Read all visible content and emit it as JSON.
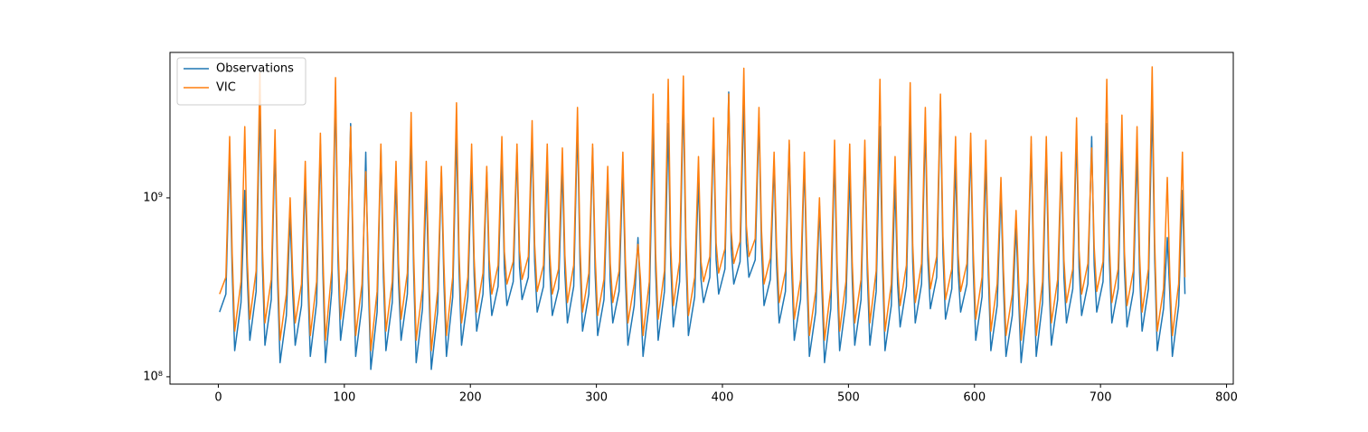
{
  "chart_data": {
    "type": "line",
    "yscale": "log",
    "grid": false,
    "legend": "upper left",
    "xlim": [
      -38.35,
      805.35
    ],
    "ylim": [
      91000000.0,
      6500000000.0
    ],
    "xticks": [
      0,
      100,
      200,
      300,
      400,
      500,
      600,
      700,
      800
    ],
    "yticks": [
      {
        "value": 100000000.0,
        "label": "10⁸"
      },
      {
        "value": 1000000000.0,
        "label": "10⁹"
      }
    ],
    "x": [
      1,
      6,
      9,
      11,
      13,
      18,
      21,
      23,
      25,
      30,
      33,
      35,
      37,
      42,
      45,
      47,
      49,
      54,
      57,
      59,
      61,
      66,
      69,
      71,
      73,
      78,
      81,
      83,
      85,
      90,
      93,
      95,
      97,
      102,
      105,
      107,
      109,
      114,
      117,
      119,
      121,
      126,
      129,
      131,
      133,
      138,
      141,
      143,
      145,
      150,
      153,
      155,
      157,
      162,
      165,
      167,
      169,
      174,
      177,
      179,
      181,
      186,
      189,
      191,
      193,
      198,
      201,
      203,
      205,
      210,
      213,
      215,
      217,
      222,
      225,
      227,
      229,
      234,
      237,
      239,
      241,
      246,
      249,
      251,
      253,
      258,
      261,
      263,
      265,
      270,
      273,
      275,
      277,
      282,
      285,
      287,
      289,
      294,
      297,
      299,
      301,
      306,
      309,
      311,
      313,
      318,
      321,
      323,
      325,
      330,
      333,
      335,
      337,
      342,
      345,
      347,
      349,
      354,
      357,
      359,
      361,
      366,
      369,
      371,
      373,
      378,
      381,
      383,
      385,
      390,
      393,
      395,
      397,
      402,
      405,
      407,
      409,
      414,
      417,
      419,
      421,
      426,
      429,
      431,
      433,
      438,
      441,
      443,
      445,
      450,
      453,
      455,
      457,
      462,
      465,
      467,
      469,
      474,
      477,
      479,
      481,
      486,
      489,
      491,
      493,
      498,
      501,
      503,
      505,
      510,
      513,
      515,
      517,
      522,
      525,
      527,
      529,
      534,
      537,
      539,
      541,
      546,
      549,
      551,
      553,
      558,
      561,
      563,
      565,
      570,
      573,
      575,
      577,
      582,
      585,
      587,
      589,
      594,
      597,
      599,
      601,
      606,
      609,
      611,
      613,
      618,
      621,
      623,
      625,
      630,
      633,
      635,
      637,
      642,
      645,
      647,
      649,
      654,
      657,
      659,
      661,
      666,
      669,
      671,
      673,
      678,
      681,
      683,
      685,
      690,
      693,
      695,
      697,
      702,
      705,
      707,
      709,
      714,
      717,
      719,
      721,
      726,
      729,
      731,
      733,
      738,
      741,
      743,
      745,
      750,
      753,
      755,
      757,
      762,
      765,
      767
    ],
    "series": [
      {
        "name": "Observations",
        "color": "#1f77b4",
        "values": [
          230000000.0,
          290000000.0,
          1800000000.0,
          390000000.0,
          140000000.0,
          260000000.0,
          1100000000.0,
          360000000.0,
          160000000.0,
          300000000.0,
          3500000000.0,
          420000000.0,
          150000000.0,
          270000000.0,
          2000000000.0,
          350000000.0,
          120000000.0,
          220000000.0,
          800000000.0,
          300000000.0,
          150000000.0,
          250000000.0,
          1300000000.0,
          340000000.0,
          130000000.0,
          260000000.0,
          2000000000.0,
          380000000.0,
          120000000.0,
          300000000.0,
          3900000000.0,
          440000000.0,
          160000000.0,
          310000000.0,
          2600000000.0,
          410000000.0,
          130000000.0,
          250000000.0,
          1800000000.0,
          350000000.0,
          110000000.0,
          230000000.0,
          1900000000.0,
          360000000.0,
          140000000.0,
          260000000.0,
          1300000000.0,
          340000000.0,
          160000000.0,
          290000000.0,
          2200000000.0,
          390000000.0,
          120000000.0,
          240000000.0,
          1200000000.0,
          330000000.0,
          110000000.0,
          230000000.0,
          1400000000.0,
          340000000.0,
          130000000.0,
          280000000.0,
          2400000000.0,
          400000000.0,
          150000000.0,
          280000000.0,
          1600000000.0,
          370000000.0,
          180000000.0,
          290000000.0,
          1400000000.0,
          360000000.0,
          220000000.0,
          320000000.0,
          1800000000.0,
          400000000.0,
          250000000.0,
          340000000.0,
          1800000000.0,
          410000000.0,
          270000000.0,
          360000000.0,
          2200000000.0,
          440000000.0,
          230000000.0,
          320000000.0,
          1500000000.0,
          390000000.0,
          220000000.0,
          310000000.0,
          1500000000.0,
          380000000.0,
          200000000.0,
          320000000.0,
          2600000000.0,
          430000000.0,
          180000000.0,
          290000000.0,
          1900000000.0,
          380000000.0,
          170000000.0,
          270000000.0,
          1300000000.0,
          340000000.0,
          200000000.0,
          300000000.0,
          1500000000.0,
          360000000.0,
          150000000.0,
          250000000.0,
          600000000.0,
          280000000.0,
          130000000.0,
          260000000.0,
          2400000000.0,
          390000000.0,
          160000000.0,
          300000000.0,
          2600000000.0,
          430000000.0,
          190000000.0,
          340000000.0,
          3700000000.0,
          480000000.0,
          170000000.0,
          280000000.0,
          1300000000.0,
          350000000.0,
          260000000.0,
          360000000.0,
          2400000000.0,
          450000000.0,
          290000000.0,
          400000000.0,
          3900000000.0,
          520000000.0,
          330000000.0,
          440000000.0,
          3600000000.0,
          560000000.0,
          360000000.0,
          450000000.0,
          2800000000.0,
          530000000.0,
          250000000.0,
          350000000.0,
          1600000000.0,
          420000000.0,
          200000000.0,
          300000000.0,
          2000000000.0,
          400000000.0,
          160000000.0,
          270000000.0,
          1600000000.0,
          360000000.0,
          130000000.0,
          230000000.0,
          900000000.0,
          300000000.0,
          120000000.0,
          240000000.0,
          1700000000.0,
          350000000.0,
          140000000.0,
          260000000.0,
          1400000000.0,
          350000000.0,
          150000000.0,
          270000000.0,
          1900000000.0,
          370000000.0,
          150000000.0,
          300000000.0,
          2500000000.0,
          420000000.0,
          140000000.0,
          250000000.0,
          1200000000.0,
          330000000.0,
          190000000.0,
          320000000.0,
          2700000000.0,
          440000000.0,
          200000000.0,
          330000000.0,
          2600000000.0,
          450000000.0,
          240000000.0,
          360000000.0,
          3500000000.0,
          490000000.0,
          210000000.0,
          310000000.0,
          1600000000.0,
          390000000.0,
          230000000.0,
          330000000.0,
          2000000000.0,
          410000000.0,
          160000000.0,
          280000000.0,
          1600000000.0,
          370000000.0,
          140000000.0,
          250000000.0,
          1100000000.0,
          320000000.0,
          130000000.0,
          220000000.0,
          700000000.0,
          280000000.0,
          120000000.0,
          260000000.0,
          2000000000.0,
          370000000.0,
          130000000.0,
          260000000.0,
          1800000000.0,
          360000000.0,
          150000000.0,
          270000000.0,
          1600000000.0,
          360000000.0,
          200000000.0,
          310000000.0,
          2300000000.0,
          410000000.0,
          220000000.0,
          330000000.0,
          2200000000.0,
          420000000.0,
          230000000.0,
          340000000.0,
          2600000000.0,
          450000000.0,
          200000000.0,
          310000000.0,
          2100000000.0,
          400000000.0,
          190000000.0,
          300000000.0,
          1800000000.0,
          380000000.0,
          180000000.0,
          310000000.0,
          3400000000.0,
          450000000.0,
          140000000.0,
          240000000.0,
          600000000.0,
          290000000.0,
          130000000.0,
          250000000.0,
          1100000000.0,
          290000000.0
        ]
      },
      {
        "name": "VIC",
        "color": "#ff7f0e",
        "values": [
          290000000.0,
          360000000.0,
          2200000000.0,
          490000000.0,
          180000000.0,
          340000000.0,
          2500000000.0,
          450000000.0,
          210000000.0,
          390000000.0,
          5000000000.0,
          530000000.0,
          200000000.0,
          350000000.0,
          2400000000.0,
          440000000.0,
          160000000.0,
          290000000.0,
          1000000000.0,
          380000000.0,
          200000000.0,
          330000000.0,
          1600000000.0,
          430000000.0,
          170000000.0,
          340000000.0,
          2300000000.0,
          480000000.0,
          160000000.0,
          390000000.0,
          4700000000.0,
          550000000.0,
          210000000.0,
          400000000.0,
          2500000000.0,
          510000000.0,
          170000000.0,
          330000000.0,
          1400000000.0,
          440000000.0,
          140000000.0,
          300000000.0,
          2000000000.0,
          450000000.0,
          180000000.0,
          340000000.0,
          1600000000.0,
          430000000.0,
          210000000.0,
          380000000.0,
          3000000000.0,
          490000000.0,
          160000000.0,
          310000000.0,
          1600000000.0,
          410000000.0,
          140000000.0,
          300000000.0,
          1500000000.0,
          430000000.0,
          170000000.0,
          360000000.0,
          3400000000.0,
          500000000.0,
          200000000.0,
          360000000.0,
          2000000000.0,
          460000000.0,
          230000000.0,
          380000000.0,
          1500000000.0,
          450000000.0,
          290000000.0,
          420000000.0,
          2200000000.0,
          500000000.0,
          330000000.0,
          440000000.0,
          2000000000.0,
          510000000.0,
          350000000.0,
          470000000.0,
          2700000000.0,
          550000000.0,
          300000000.0,
          420000000.0,
          2000000000.0,
          490000000.0,
          290000000.0,
          400000000.0,
          1900000000.0,
          480000000.0,
          260000000.0,
          420000000.0,
          3200000000.0,
          540000000.0,
          230000000.0,
          380000000.0,
          2000000000.0,
          480000000.0,
          220000000.0,
          350000000.0,
          1500000000.0,
          430000000.0,
          260000000.0,
          390000000.0,
          1800000000.0,
          450000000.0,
          200000000.0,
          330000000.0,
          550000000.0,
          350000000.0,
          170000000.0,
          340000000.0,
          3800000000.0,
          490000000.0,
          210000000.0,
          390000000.0,
          4600000000.0,
          540000000.0,
          250000000.0,
          440000000.0,
          4800000000.0,
          600000000.0,
          220000000.0,
          360000000.0,
          1700000000.0,
          440000000.0,
          340000000.0,
          470000000.0,
          2800000000.0,
          560000000.0,
          380000000.0,
          520000000.0,
          3800000000.0,
          650000000.0,
          430000000.0,
          570000000.0,
          5300000000.0,
          700000000.0,
          470000000.0,
          590000000.0,
          3200000000.0,
          660000000.0,
          330000000.0,
          460000000.0,
          1800000000.0,
          530000000.0,
          260000000.0,
          390000000.0,
          2100000000.0,
          500000000.0,
          210000000.0,
          350000000.0,
          1800000000.0,
          450000000.0,
          170000000.0,
          300000000.0,
          1000000000.0,
          380000000.0,
          160000000.0,
          310000000.0,
          2100000000.0,
          440000000.0,
          180000000.0,
          340000000.0,
          2000000000.0,
          440000000.0,
          200000000.0,
          350000000.0,
          2100000000.0,
          460000000.0,
          200000000.0,
          390000000.0,
          4600000000.0,
          530000000.0,
          180000000.0,
          330000000.0,
          1700000000.0,
          410000000.0,
          250000000.0,
          420000000.0,
          4400000000.0,
          550000000.0,
          260000000.0,
          430000000.0,
          3200000000.0,
          560000000.0,
          310000000.0,
          470000000.0,
          3800000000.0,
          610000000.0,
          270000000.0,
          400000000.0,
          2200000000.0,
          490000000.0,
          300000000.0,
          430000000.0,
          2300000000.0,
          510000000.0,
          210000000.0,
          360000000.0,
          2100000000.0,
          460000000.0,
          180000000.0,
          330000000.0,
          1300000000.0,
          400000000.0,
          170000000.0,
          290000000.0,
          850000000.0,
          350000000.0,
          160000000.0,
          340000000.0,
          2200000000.0,
          460000000.0,
          170000000.0,
          340000000.0,
          2200000000.0,
          450000000.0,
          200000000.0,
          350000000.0,
          1800000000.0,
          450000000.0,
          260000000.0,
          400000000.0,
          2800000000.0,
          510000000.0,
          290000000.0,
          430000000.0,
          1900000000.0,
          530000000.0,
          300000000.0,
          440000000.0,
          4600000000.0,
          560000000.0,
          260000000.0,
          400000000.0,
          2900000000.0,
          500000000.0,
          250000000.0,
          390000000.0,
          2500000000.0,
          480000000.0,
          230000000.0,
          400000000.0,
          5400000000.0,
          560000000.0,
          180000000.0,
          310000000.0,
          1300000000.0,
          360000000.0,
          170000000.0,
          330000000.0,
          1800000000.0,
          360000000.0
        ]
      }
    ]
  }
}
